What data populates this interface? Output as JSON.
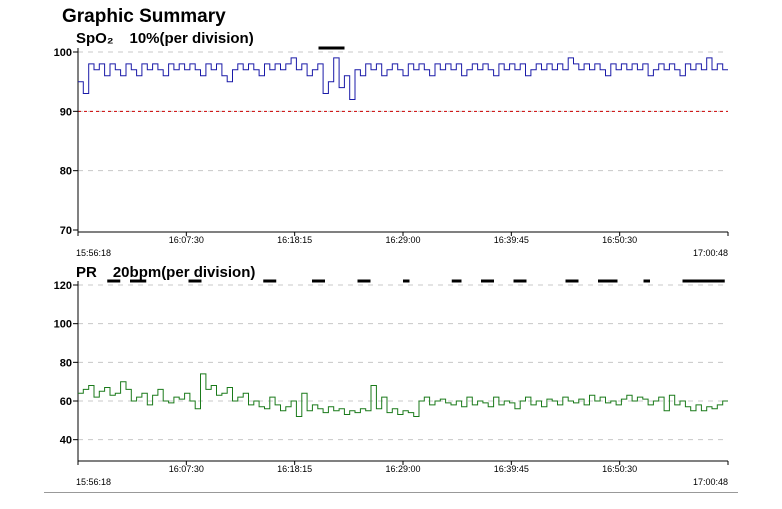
{
  "page_title": "Graphic Summary",
  "chart_data": [
    {
      "type": "line",
      "label_param": "SpO₂",
      "label_scale": "10%(per division)",
      "ylim": [
        70,
        100
      ],
      "yticks": [
        70,
        80,
        90,
        100
      ],
      "x_tick_labels": [
        "15:56:18",
        "16:07:30",
        "16:18:15",
        "16:29:00",
        "16:39:45",
        "16:50:30",
        "17:00:48"
      ],
      "threshold": 90,
      "threshold_color": "#cc0000",
      "grid": true,
      "series": [
        {
          "color": "#1a1aa8",
          "values": [
            95,
            93,
            98,
            97,
            98,
            96,
            98,
            97,
            96,
            98,
            97,
            96,
            98,
            97,
            98,
            97,
            96,
            98,
            97,
            98,
            97,
            98,
            97,
            96,
            98,
            97,
            98,
            96,
            95,
            97,
            98,
            97,
            98,
            97,
            96,
            98,
            97,
            98,
            97,
            98,
            99,
            97,
            98,
            96,
            97,
            98,
            93,
            95,
            99,
            94,
            96,
            92,
            97,
            96,
            98,
            97,
            98,
            96,
            97,
            98,
            97,
            96,
            98,
            97,
            98,
            97,
            96,
            98,
            97,
            98,
            97,
            98,
            96,
            97,
            98,
            97,
            98,
            97,
            96,
            98,
            97,
            98,
            97,
            98,
            96,
            97,
            98,
            97,
            98,
            97,
            98,
            97,
            99,
            98,
            97,
            98,
            97,
            98,
            97,
            96,
            98,
            97,
            98,
            97,
            98,
            97,
            98,
            96,
            97,
            98,
            97,
            98,
            97,
            96,
            98,
            97,
            98,
            97,
            99,
            97,
            98,
            97
          ]
        }
      ],
      "event_markers": [
        [
          0.37,
          0.41
        ]
      ]
    },
    {
      "type": "line",
      "label_param": "PR",
      "label_scale": "20bpm(per division)",
      "ylim": [
        30,
        120
      ],
      "yticks": [
        40,
        60,
        80,
        100,
        120
      ],
      "x_tick_labels": [
        "15:56:18",
        "16:07:30",
        "16:18:15",
        "16:29:00",
        "16:39:45",
        "16:50:30",
        "17:00:48"
      ],
      "grid": true,
      "series": [
        {
          "color": "#1a7a1a",
          "values": [
            64,
            66,
            68,
            62,
            65,
            67,
            63,
            64,
            70,
            66,
            60,
            62,
            64,
            58,
            63,
            66,
            60,
            59,
            62,
            61,
            64,
            60,
            56,
            74,
            66,
            68,
            63,
            64,
            67,
            60,
            62,
            64,
            58,
            60,
            57,
            56,
            62,
            58,
            55,
            57,
            60,
            52,
            64,
            55,
            58,
            56,
            54,
            57,
            55,
            56,
            53,
            55,
            54,
            56,
            55,
            68,
            56,
            62,
            54,
            56,
            53,
            55,
            54,
            52,
            60,
            62,
            58,
            60,
            61,
            59,
            58,
            60,
            57,
            62,
            58,
            60,
            59,
            57,
            62,
            58,
            60,
            59,
            56,
            60,
            62,
            58,
            60,
            57,
            61,
            60,
            58,
            62,
            60,
            59,
            61,
            58,
            63,
            60,
            62,
            59,
            60,
            58,
            61,
            63,
            60,
            62,
            61,
            58,
            60,
            62,
            55,
            63,
            58,
            60,
            57,
            55,
            58,
            55,
            57,
            56,
            58,
            60
          ]
        }
      ],
      "event_markers": [
        [
          0.045,
          0.065
        ],
        [
          0.08,
          0.105
        ],
        [
          0.17,
          0.19
        ],
        [
          0.285,
          0.305
        ],
        [
          0.36,
          0.38
        ],
        [
          0.43,
          0.45
        ],
        [
          0.5,
          0.51
        ],
        [
          0.575,
          0.59
        ],
        [
          0.62,
          0.64
        ],
        [
          0.67,
          0.69
        ],
        [
          0.75,
          0.77
        ],
        [
          0.8,
          0.83
        ],
        [
          0.87,
          0.88
        ],
        [
          0.93,
          0.97
        ],
        [
          0.97,
          0.995
        ]
      ]
    }
  ]
}
